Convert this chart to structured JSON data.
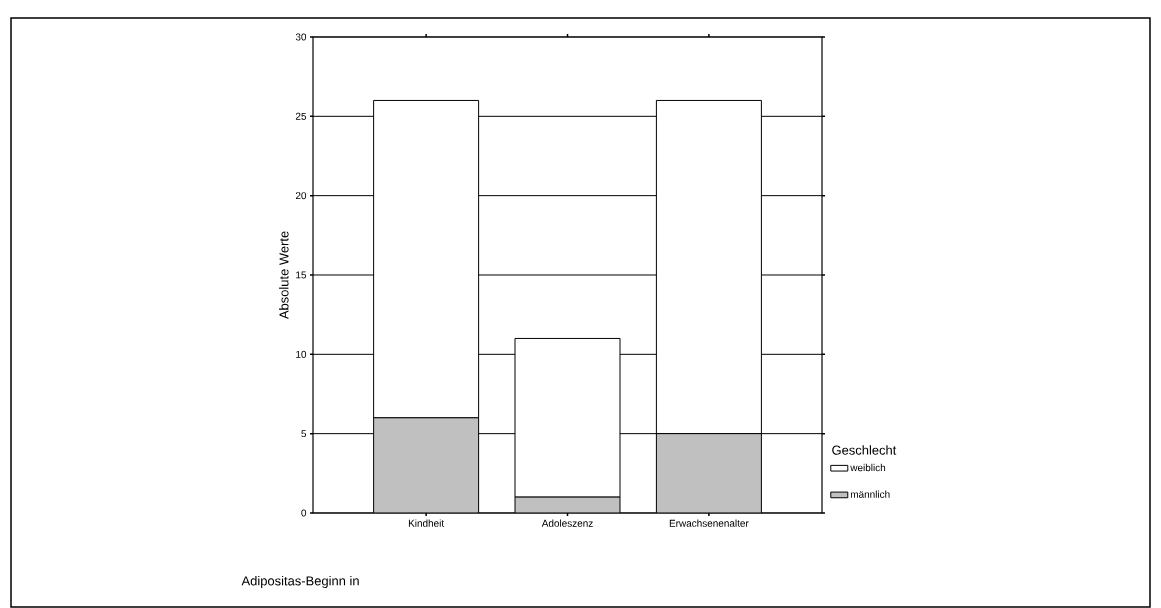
{
  "chart_data": {
    "type": "bar",
    "stacked": true,
    "annotations": [
      "Adipositas-Beginn in"
    ],
    "ylabel": "Absolute Werte",
    "legend_title": "Geschlecht",
    "categories": [
      "Kindheit",
      "Adoleszenz",
      "Erwachsenenalter"
    ],
    "series": [
      {
        "name": "männlich",
        "color": "#c0c0c0",
        "values": [
          6,
          1,
          5
        ]
      },
      {
        "name": "weiblich",
        "color": "#ffffff",
        "values": [
          20,
          10,
          21
        ]
      }
    ],
    "ylim": [
      0,
      30
    ],
    "yticks": [
      0,
      5,
      10,
      15,
      20,
      25,
      30
    ],
    "grid": "y",
    "legend": "right"
  }
}
